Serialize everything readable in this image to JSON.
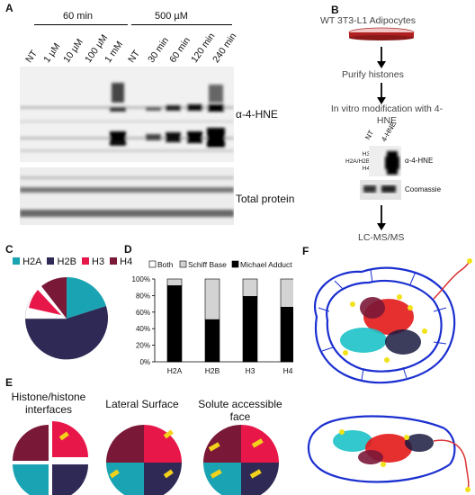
{
  "panelA": {
    "label": "A",
    "group1": "60 min",
    "group2": "500 µM",
    "lanes": [
      "NT",
      "1 µM",
      "10 µM",
      "100 µM",
      "1 mM",
      "NT",
      "30 min",
      "60 min",
      "120 min",
      "240 min"
    ],
    "blot1_label": "α-4-HNE",
    "blot2_label": "Total protein"
  },
  "panelB": {
    "label": "B",
    "title": "WT 3T3-L1 Adipocytes",
    "step1": "Purify histones",
    "step2": "In vitro modification with 4-HNE",
    "lane1": "NT",
    "lane2": "4-HNE",
    "histones": [
      "H3",
      "H2A/H2B",
      "H4"
    ],
    "blot1_label": "α-4-HNE",
    "blot2_label": "Coomassie",
    "step3": "LC-MS/MS"
  },
  "panelC": {
    "label": "C",
    "legend": [
      {
        "name": "H2A",
        "color": "#1aa3b3"
      },
      {
        "name": "H2B",
        "color": "#2e2a55"
      },
      {
        "name": "H3",
        "color": "#e8174a"
      },
      {
        "name": "H4",
        "color": "#7a1838"
      }
    ]
  },
  "panelD": {
    "label": "D",
    "chart_data": {
      "type": "bar",
      "stacked": true,
      "categories": [
        "H2A",
        "H2B",
        "H3",
        "H4"
      ],
      "series": [
        {
          "name": "Michael Adduct",
          "values": [
            92,
            51,
            79,
            66
          ],
          "color": "#000000"
        },
        {
          "name": "Schiff Base",
          "values": [
            8,
            49,
            21,
            34
          ],
          "color": "#d3d3d3"
        },
        {
          "name": "Both",
          "values": [
            0,
            0,
            0,
            0
          ],
          "color": "#ffffff"
        }
      ],
      "legend_order": [
        "Both",
        "Schiff Base",
        "Michael Adduct"
      ],
      "legend_position": "top",
      "ylim": [
        0,
        100
      ],
      "yticks": [
        "0%",
        "20%",
        "40%",
        "60%",
        "80%",
        "100%"
      ]
    }
  },
  "panelE": {
    "label": "E",
    "pies": [
      {
        "title": "Histone/histone interfaces"
      },
      {
        "title": "Lateral Surface"
      },
      {
        "title": "Solute accessible face"
      }
    ]
  },
  "panelF": {
    "label": "F"
  }
}
